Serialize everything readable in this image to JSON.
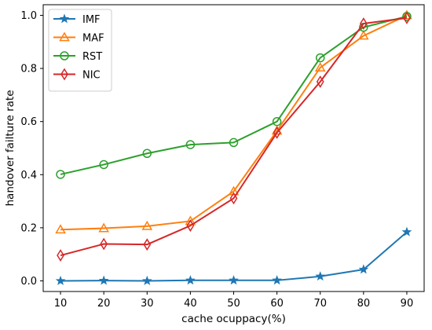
{
  "chart_data": {
    "type": "line",
    "xlabel": "cache ocuppacy(%)",
    "ylabel": "handover failture rate",
    "x": [
      10,
      20,
      30,
      40,
      50,
      60,
      70,
      80,
      90
    ],
    "xticks": [
      10,
      20,
      30,
      40,
      50,
      60,
      70,
      80,
      90
    ],
    "xlim": [
      6,
      94
    ],
    "ylim": [
      -0.04,
      1.04
    ],
    "yticks": [
      0.0,
      0.2,
      0.4,
      0.6,
      0.8,
      1.0
    ],
    "ytick_labels": [
      "0.0",
      "0.2",
      "0.4",
      "0.6",
      "0.8",
      "1.0"
    ],
    "grid": false,
    "legend_position": "top-left",
    "series": [
      {
        "name": "IMF",
        "color": "#1f77b4",
        "marker": "star",
        "values": [
          0.0,
          0.001,
          0.0,
          0.002,
          0.002,
          0.002,
          0.017,
          0.043,
          0.184
        ]
      },
      {
        "name": "MAF",
        "color": "#ff7f0e",
        "marker": "triangle",
        "values": [
          0.193,
          0.198,
          0.206,
          0.225,
          0.337,
          0.565,
          0.803,
          0.923,
          1.0
        ]
      },
      {
        "name": "RST",
        "color": "#2ca02c",
        "marker": "circle",
        "values": [
          0.401,
          0.438,
          0.48,
          0.513,
          0.521,
          0.6,
          0.84,
          0.955,
          0.996
        ]
      },
      {
        "name": "NIC",
        "color": "#d62728",
        "marker": "diamond",
        "values": [
          0.096,
          0.139,
          0.137,
          0.208,
          0.311,
          0.558,
          0.75,
          0.969,
          0.99
        ]
      }
    ]
  }
}
